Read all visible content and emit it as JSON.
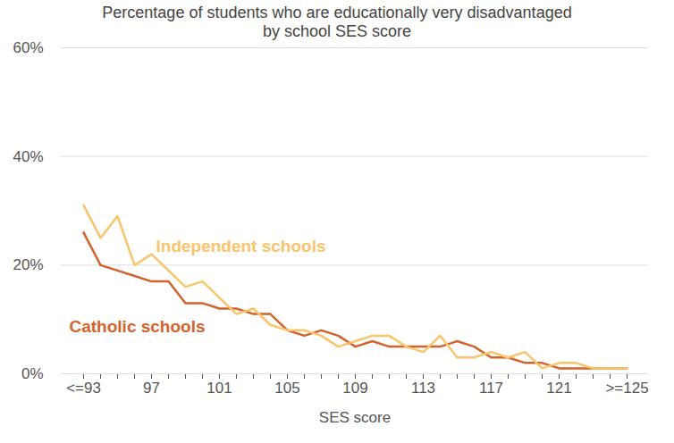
{
  "chart_data": {
    "type": "line",
    "title": "Percentage of students who are educationally very disadvantaged\nby school SES score",
    "x_label": "SES score",
    "categories": [
      "<=93",
      null,
      null,
      null,
      "97",
      null,
      null,
      null,
      "101",
      null,
      null,
      null,
      "105",
      null,
      null,
      null,
      "109",
      null,
      null,
      null,
      "113",
      null,
      null,
      null,
      "117",
      null,
      null,
      null,
      "121",
      null,
      null,
      null,
      ">=125"
    ],
    "series": [
      {
        "name": "Independent schools",
        "color": "#f9c46b",
        "values": [
          31,
          25,
          29,
          20,
          22,
          19,
          16,
          17,
          14,
          11,
          12,
          9,
          8,
          8,
          7,
          5,
          6,
          7,
          7,
          5,
          4,
          7,
          3,
          3,
          4,
          3,
          4,
          1,
          2,
          2,
          1,
          1,
          1
        ]
      },
      {
        "name": "Catholic schools",
        "color": "#d4622b",
        "values": [
          26,
          20,
          19,
          18,
          17,
          17,
          13,
          13,
          12,
          12,
          11,
          11,
          8,
          7,
          8,
          7,
          5,
          6,
          5,
          5,
          5,
          5,
          6,
          5,
          3,
          3,
          2,
          2,
          1,
          1,
          1,
          1,
          1
        ]
      }
    ],
    "ylim": [
      0,
      60
    ],
    "yticks": [
      {
        "value": 0,
        "label": "0%"
      },
      {
        "value": 20,
        "label": "20%"
      },
      {
        "value": 40,
        "label": "40%"
      },
      {
        "value": 60,
        "label": "60%"
      }
    ],
    "grid": true
  }
}
